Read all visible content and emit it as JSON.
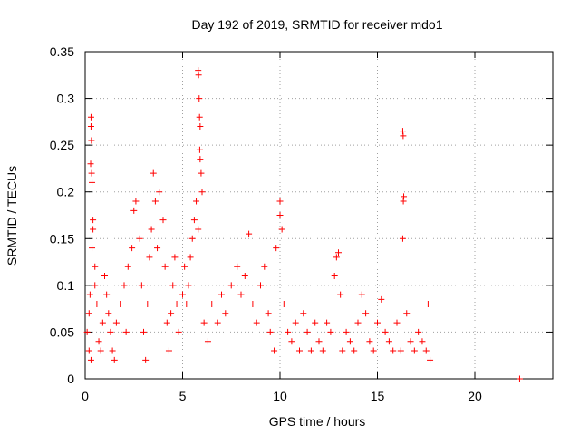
{
  "chart_data": {
    "type": "scatter",
    "title": "Day 192 of 2019, SRMTID for receiver mdo1",
    "xlabel": "GPS time / hours",
    "ylabel": "SRMTID / TECUs",
    "xlim": [
      0,
      24
    ],
    "ylim": [
      0,
      0.35
    ],
    "x_ticks": [
      0,
      5,
      10,
      15,
      20
    ],
    "x_tick_labels": [
      "0",
      "5",
      "10",
      "15",
      "20"
    ],
    "y_ticks": [
      0,
      0.05,
      0.1,
      0.15,
      0.2,
      0.25,
      0.3,
      0.35
    ],
    "y_tick_labels": [
      "0",
      "0.05",
      "0.1",
      "0.15",
      "0.2",
      "0.25",
      "0.3",
      "0.35"
    ],
    "grid": true,
    "marker": "+",
    "color": "#ff0000",
    "series": [
      {
        "name": "SRMTID",
        "points": [
          [
            0.1,
            0.05
          ],
          [
            0.2,
            0.07
          ],
          [
            0.25,
            0.09
          ],
          [
            0.3,
            0.28
          ],
          [
            0.3,
            0.27
          ],
          [
            0.32,
            0.255
          ],
          [
            0.28,
            0.23
          ],
          [
            0.33,
            0.22
          ],
          [
            0.35,
            0.21
          ],
          [
            0.4,
            0.17
          ],
          [
            0.4,
            0.16
          ],
          [
            0.35,
            0.14
          ],
          [
            0.5,
            0.12
          ],
          [
            0.5,
            0.1
          ],
          [
            0.6,
            0.08
          ],
          [
            0.7,
            0.04
          ],
          [
            0.8,
            0.03
          ],
          [
            0.2,
            0.03
          ],
          [
            0.3,
            0.02
          ],
          [
            0.9,
            0.06
          ],
          [
            1.0,
            0.11
          ],
          [
            1.1,
            0.09
          ],
          [
            1.2,
            0.07
          ],
          [
            1.3,
            0.05
          ],
          [
            1.4,
            0.03
          ],
          [
            1.5,
            0.02
          ],
          [
            1.6,
            0.06
          ],
          [
            1.8,
            0.08
          ],
          [
            2.0,
            0.1
          ],
          [
            2.1,
            0.05
          ],
          [
            2.2,
            0.12
          ],
          [
            2.4,
            0.14
          ],
          [
            2.5,
            0.18
          ],
          [
            2.6,
            0.19
          ],
          [
            2.8,
            0.15
          ],
          [
            2.9,
            0.1
          ],
          [
            3.0,
            0.05
          ],
          [
            3.1,
            0.02
          ],
          [
            3.2,
            0.08
          ],
          [
            3.3,
            0.13
          ],
          [
            3.4,
            0.16
          ],
          [
            3.5,
            0.22
          ],
          [
            3.6,
            0.19
          ],
          [
            3.7,
            0.14
          ],
          [
            3.8,
            0.2
          ],
          [
            4.0,
            0.17
          ],
          [
            4.1,
            0.12
          ],
          [
            4.2,
            0.06
          ],
          [
            4.3,
            0.03
          ],
          [
            4.4,
            0.07
          ],
          [
            4.5,
            0.1
          ],
          [
            4.6,
            0.13
          ],
          [
            4.7,
            0.08
          ],
          [
            4.8,
            0.05
          ],
          [
            5.0,
            0.09
          ],
          [
            5.1,
            0.12
          ],
          [
            5.2,
            0.08
          ],
          [
            5.3,
            0.1
          ],
          [
            5.4,
            0.13
          ],
          [
            5.5,
            0.15
          ],
          [
            5.6,
            0.17
          ],
          [
            5.7,
            0.19
          ],
          [
            5.8,
            0.33
          ],
          [
            5.82,
            0.325
          ],
          [
            5.85,
            0.3
          ],
          [
            5.87,
            0.28
          ],
          [
            5.9,
            0.27
          ],
          [
            5.88,
            0.245
          ],
          [
            5.9,
            0.235
          ],
          [
            5.95,
            0.22
          ],
          [
            6.0,
            0.2
          ],
          [
            5.8,
            0.16
          ],
          [
            6.1,
            0.06
          ],
          [
            6.3,
            0.04
          ],
          [
            6.5,
            0.08
          ],
          [
            6.8,
            0.06
          ],
          [
            7.0,
            0.09
          ],
          [
            7.2,
            0.07
          ],
          [
            7.5,
            0.1
          ],
          [
            7.8,
            0.12
          ],
          [
            8.0,
            0.09
          ],
          [
            8.2,
            0.11
          ],
          [
            8.4,
            0.155
          ],
          [
            8.6,
            0.08
          ],
          [
            8.8,
            0.06
          ],
          [
            9.0,
            0.1
          ],
          [
            9.2,
            0.12
          ],
          [
            9.4,
            0.07
          ],
          [
            9.5,
            0.05
          ],
          [
            9.7,
            0.03
          ],
          [
            9.8,
            0.14
          ],
          [
            10.0,
            0.175
          ],
          [
            10.0,
            0.19
          ],
          [
            10.1,
            0.16
          ],
          [
            10.2,
            0.08
          ],
          [
            10.4,
            0.05
          ],
          [
            10.6,
            0.04
          ],
          [
            10.8,
            0.06
          ],
          [
            11.0,
            0.03
          ],
          [
            11.2,
            0.07
          ],
          [
            11.4,
            0.05
          ],
          [
            11.6,
            0.03
          ],
          [
            11.8,
            0.06
          ],
          [
            12.0,
            0.04
          ],
          [
            12.2,
            0.03
          ],
          [
            12.4,
            0.06
          ],
          [
            12.6,
            0.05
          ],
          [
            12.8,
            0.11
          ],
          [
            12.9,
            0.13
          ],
          [
            13.0,
            0.135
          ],
          [
            13.1,
            0.09
          ],
          [
            13.2,
            0.03
          ],
          [
            13.4,
            0.05
          ],
          [
            13.6,
            0.04
          ],
          [
            13.8,
            0.03
          ],
          [
            14.0,
            0.06
          ],
          [
            14.2,
            0.09
          ],
          [
            14.4,
            0.07
          ],
          [
            14.6,
            0.04
          ],
          [
            14.8,
            0.03
          ],
          [
            15.0,
            0.06
          ],
          [
            15.2,
            0.085
          ],
          [
            15.4,
            0.05
          ],
          [
            15.6,
            0.04
          ],
          [
            15.8,
            0.03
          ],
          [
            16.0,
            0.06
          ],
          [
            16.2,
            0.03
          ],
          [
            16.3,
            0.265
          ],
          [
            16.32,
            0.26
          ],
          [
            16.35,
            0.195
          ],
          [
            16.33,
            0.19
          ],
          [
            16.3,
            0.15
          ],
          [
            16.5,
            0.07
          ],
          [
            16.7,
            0.04
          ],
          [
            16.9,
            0.03
          ],
          [
            17.1,
            0.05
          ],
          [
            17.3,
            0.04
          ],
          [
            17.5,
            0.03
          ],
          [
            17.6,
            0.08
          ],
          [
            17.7,
            0.02
          ],
          [
            22.3,
            0.0
          ]
        ]
      }
    ]
  }
}
